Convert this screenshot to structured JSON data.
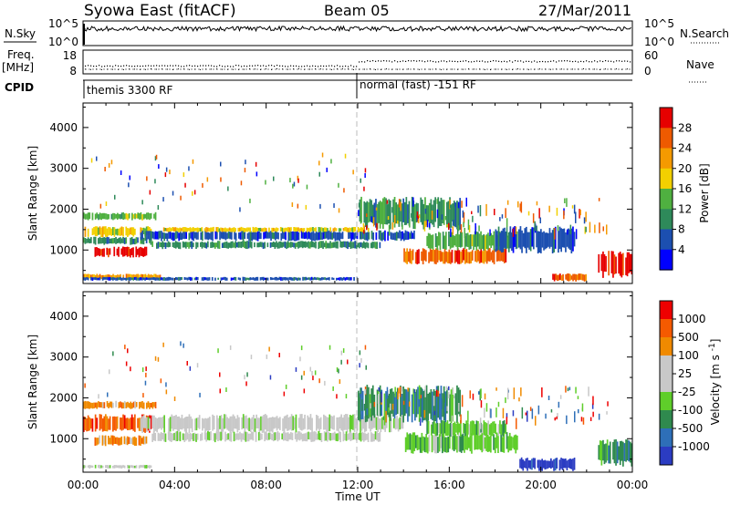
{
  "header": {
    "title": "Syowa East (fitACF)",
    "beam": "Beam 05",
    "date": "27/Mar/2011"
  },
  "top_panels": {
    "nsky_label": "N.Sky",
    "nsky_ticks": [
      "10^5",
      "10^0"
    ],
    "nsearch_label": "N.Search",
    "nsearch_ticks": [
      "10^5",
      "10^0"
    ],
    "freq_label": "Freq.",
    "freq_unit": "[MHz]",
    "freq_ticks": [
      "18",
      "8"
    ],
    "nave_label": "Nave",
    "nave_ticks": [
      "60",
      "0"
    ],
    "cpid_label": "CPID",
    "cpid_segments": [
      "themis 3300 RF",
      "normal (fast) -151 RF"
    ]
  },
  "x_axis": {
    "label": "Time UT",
    "ticks": [
      "00:00",
      "04:00",
      "08:00",
      "12:00",
      "16:00",
      "20:00",
      "00:00"
    ]
  },
  "chart_data": [
    {
      "type": "heatmap",
      "panel": "power",
      "ylabel": "Slant Range [km]",
      "yticks": [
        "1000",
        "2000",
        "3000",
        "4000"
      ],
      "ylim": [
        180,
        4600
      ],
      "xlim": [
        0,
        24
      ],
      "colorbar_label": "Power [dB]",
      "colorbar_ticks": [
        "4",
        "8",
        "12",
        "16",
        "20",
        "24",
        "28"
      ],
      "colors": [
        "#0000ff",
        "#1c4fb0",
        "#2e8a5a",
        "#4fb040",
        "#f2d000",
        "#f59a00",
        "#ee5a00",
        "#e60000"
      ],
      "bands": [
        {
          "t0": 0.0,
          "t1": 3.2,
          "r0": 1750,
          "r1": 1900,
          "c": 3
        },
        {
          "t0": 0.0,
          "t1": 3.0,
          "r0": 1350,
          "r1": 1550,
          "c": 4
        },
        {
          "t0": 0.0,
          "t1": 3.0,
          "r0": 1150,
          "r1": 1300,
          "c": 2
        },
        {
          "t0": 0.5,
          "t1": 2.8,
          "r0": 850,
          "r1": 1050,
          "c": 7
        },
        {
          "t0": 0.0,
          "t1": 3.4,
          "r0": 300,
          "r1": 400,
          "c": 5
        },
        {
          "t0": 2.5,
          "t1": 14.5,
          "r0": 1250,
          "r1": 1450,
          "c": 1
        },
        {
          "t0": 3.0,
          "t1": 13.0,
          "r0": 1050,
          "r1": 1200,
          "c": 2
        },
        {
          "t0": 3.5,
          "t1": 12.5,
          "r0": 1450,
          "r1": 1550,
          "c": 4
        },
        {
          "t0": 12.0,
          "t1": 16.5,
          "r0": 1600,
          "r1": 2200,
          "c": 2
        },
        {
          "t0": 14.0,
          "t1": 18.5,
          "r0": 700,
          "r1": 1000,
          "c": 6
        },
        {
          "t0": 15.0,
          "t1": 19.0,
          "r0": 1050,
          "r1": 1400,
          "c": 3
        },
        {
          "t0": 18.0,
          "t1": 21.5,
          "r0": 1000,
          "r1": 1500,
          "c": 1
        },
        {
          "t0": 20.5,
          "t1": 22.0,
          "r0": 250,
          "r1": 400,
          "c": 6
        },
        {
          "t0": 22.5,
          "t1": 24.0,
          "r0": 400,
          "r1": 900,
          "c": 7
        },
        {
          "t0": 0.0,
          "t1": 12.0,
          "r0": 260,
          "r1": 330,
          "c": 1
        }
      ]
    },
    {
      "type": "heatmap",
      "panel": "velocity",
      "ylabel": "Slant Range [km]",
      "yticks": [
        "1000",
        "2000",
        "3000",
        "4000"
      ],
      "ylim": [
        180,
        4600
      ],
      "xlim": [
        0,
        24
      ],
      "colorbar_label": "Velocity [m s^-1]",
      "colorbar_ticks": [
        "1000",
        "500",
        "100",
        "25",
        "-25",
        "-100",
        "-500",
        "-1000"
      ],
      "colors": [
        "#2b3cc2",
        "#2e6fb8",
        "#2f8a4e",
        "#5fce2a",
        "#c8c8c8",
        "#c8c8c8",
        "#f08a00",
        "#f55a00",
        "#ee0000"
      ],
      "bands": [
        {
          "t0": 0.0,
          "t1": 3.2,
          "r0": 1750,
          "r1": 1900,
          "c": 6
        },
        {
          "t0": 0.0,
          "t1": 3.0,
          "r0": 1200,
          "r1": 1550,
          "c": 7
        },
        {
          "t0": 0.5,
          "t1": 2.8,
          "r0": 850,
          "r1": 1050,
          "c": 6
        },
        {
          "t0": 2.5,
          "t1": 14.0,
          "r0": 1200,
          "r1": 1550,
          "c": 4
        },
        {
          "t0": 3.0,
          "t1": 13.0,
          "r0": 950,
          "r1": 1150,
          "c": 4
        },
        {
          "t0": 12.0,
          "t1": 16.5,
          "r0": 1500,
          "r1": 2200,
          "c": 2
        },
        {
          "t0": 14.0,
          "t1": 19.0,
          "r0": 700,
          "r1": 1100,
          "c": 3
        },
        {
          "t0": 15.0,
          "t1": 18.5,
          "r0": 1100,
          "r1": 1400,
          "c": 3
        },
        {
          "t0": 19.0,
          "t1": 21.5,
          "r0": 250,
          "r1": 500,
          "c": 0
        },
        {
          "t0": 22.5,
          "t1": 24.0,
          "r0": 400,
          "r1": 900,
          "c": 2
        },
        {
          "t0": 0.0,
          "t1": 3.0,
          "r0": 280,
          "r1": 350,
          "c": 4
        }
      ]
    }
  ]
}
